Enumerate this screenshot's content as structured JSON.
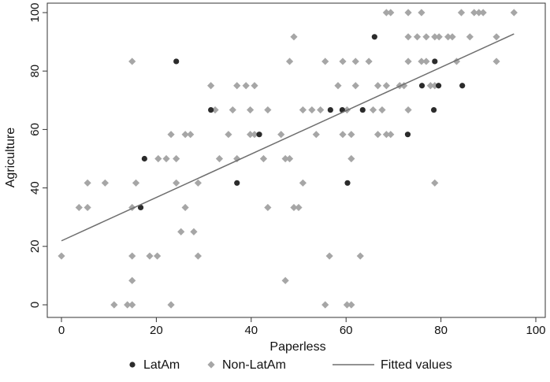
{
  "chart_data": {
    "type": "scatter",
    "title": "",
    "xlabel": "Paperless",
    "ylabel": "Agriculture",
    "xlim": [
      0,
      100
    ],
    "ylim": [
      0,
      100
    ],
    "xticks": [
      "0",
      "20",
      "40",
      "60",
      "80",
      "100"
    ],
    "yticks": [
      "0",
      "20",
      "40",
      "60",
      "80",
      "100"
    ],
    "legend_position": "bottom",
    "series": [
      {
        "name": "LatAm",
        "marker": "circle",
        "color": "#2b2b2b",
        "points": [
          [
            16.7,
            33.3
          ],
          [
            17.5,
            50
          ],
          [
            24.2,
            83.3
          ],
          [
            31.5,
            66.7
          ],
          [
            37,
            41.7
          ],
          [
            41.7,
            58.3
          ],
          [
            56.7,
            66.7
          ],
          [
            59.2,
            66.7
          ],
          [
            60.3,
            41.7
          ],
          [
            63.5,
            66.7
          ],
          [
            66,
            91.7
          ],
          [
            73,
            58.3
          ],
          [
            76,
            75
          ],
          [
            78.5,
            66.7
          ],
          [
            78.7,
            83.3
          ],
          [
            79.5,
            75
          ],
          [
            84.5,
            75
          ]
        ]
      },
      {
        "name": "Non-LatAm",
        "marker": "diamond",
        "color": "#a6a6a6",
        "points": [
          [
            0,
            16.7
          ],
          [
            3.7,
            33.3
          ],
          [
            5.5,
            33.3
          ],
          [
            5.5,
            41.7
          ],
          [
            9.2,
            41.7
          ],
          [
            11.1,
            0
          ],
          [
            13.9,
            0
          ],
          [
            14.9,
            0
          ],
          [
            14.9,
            8.3
          ],
          [
            14.9,
            16.7
          ],
          [
            14.9,
            33.3
          ],
          [
            14.9,
            83.3
          ],
          [
            15.7,
            41.7
          ],
          [
            18.6,
            16.7
          ],
          [
            20.2,
            16.7
          ],
          [
            20.4,
            50
          ],
          [
            22.1,
            50
          ],
          [
            23.1,
            0
          ],
          [
            23.1,
            58.3
          ],
          [
            24.2,
            41.7
          ],
          [
            24.2,
            50
          ],
          [
            25.2,
            25
          ],
          [
            26.1,
            33.3
          ],
          [
            26.1,
            58.3
          ],
          [
            27.2,
            58.3
          ],
          [
            27.9,
            25
          ],
          [
            28.8,
            16.7
          ],
          [
            28.8,
            41.7
          ],
          [
            31.5,
            75
          ],
          [
            32.4,
            66.7
          ],
          [
            33.3,
            50
          ],
          [
            35.2,
            58.3
          ],
          [
            36.1,
            66.7
          ],
          [
            37,
            50
          ],
          [
            37,
            75
          ],
          [
            38.9,
            75
          ],
          [
            39.8,
            58.3
          ],
          [
            39.8,
            66.7
          ],
          [
            40.7,
            58.3
          ],
          [
            40.7,
            75
          ],
          [
            42.6,
            50
          ],
          [
            43.5,
            33.3
          ],
          [
            43.5,
            66.7
          ],
          [
            46.3,
            58.3
          ],
          [
            47.2,
            8.3
          ],
          [
            47.2,
            50
          ],
          [
            48.1,
            50
          ],
          [
            48.1,
            83.3
          ],
          [
            49,
            33.3
          ],
          [
            49,
            91.7
          ],
          [
            50,
            33.3
          ],
          [
            50.9,
            41.7
          ],
          [
            50.9,
            66.7
          ],
          [
            52.8,
            66.7
          ],
          [
            53.7,
            58.3
          ],
          [
            54.6,
            66.7
          ],
          [
            55.6,
            0
          ],
          [
            55.6,
            83.3
          ],
          [
            56.5,
            16.7
          ],
          [
            58.3,
            75
          ],
          [
            59.3,
            58.3
          ],
          [
            59.3,
            83.3
          ],
          [
            60.2,
            0
          ],
          [
            60.2,
            66.7
          ],
          [
            61.1,
            0
          ],
          [
            61.1,
            50
          ],
          [
            61.1,
            58.3
          ],
          [
            62,
            75
          ],
          [
            62,
            83.3
          ],
          [
            63,
            16.7
          ],
          [
            64.8,
            83.3
          ],
          [
            65.7,
            66.7
          ],
          [
            66.7,
            58.3
          ],
          [
            66.7,
            75
          ],
          [
            67.6,
            66.7
          ],
          [
            68.5,
            58.3
          ],
          [
            68.5,
            75
          ],
          [
            68.5,
            100
          ],
          [
            69.4,
            58.3
          ],
          [
            69.4,
            100
          ],
          [
            71.3,
            75
          ],
          [
            72.2,
            75
          ],
          [
            73.1,
            66.7
          ],
          [
            73.1,
            83.3
          ],
          [
            73.1,
            91.7
          ],
          [
            73.1,
            100
          ],
          [
            75,
            91.7
          ],
          [
            75.9,
            83.3
          ],
          [
            75.9,
            100
          ],
          [
            76.9,
            83.3
          ],
          [
            76.9,
            91.7
          ],
          [
            77.8,
            75
          ],
          [
            78.7,
            41.7
          ],
          [
            78.7,
            75
          ],
          [
            78.7,
            91.7
          ],
          [
            79.6,
            91.7
          ],
          [
            81.5,
            91.7
          ],
          [
            82.4,
            91.7
          ],
          [
            83.3,
            83.3
          ],
          [
            84.3,
            100
          ],
          [
            86.1,
            91.7
          ],
          [
            87,
            100
          ],
          [
            88,
            100
          ],
          [
            88.9,
            100
          ],
          [
            91.7,
            83.3
          ],
          [
            91.7,
            91.7
          ],
          [
            95.4,
            100
          ]
        ]
      },
      {
        "name": "Fitted values",
        "marker": "line",
        "color": "#6e6e6e",
        "points": [
          [
            0,
            21.9
          ],
          [
            95.4,
            92.7
          ]
        ]
      }
    ]
  }
}
